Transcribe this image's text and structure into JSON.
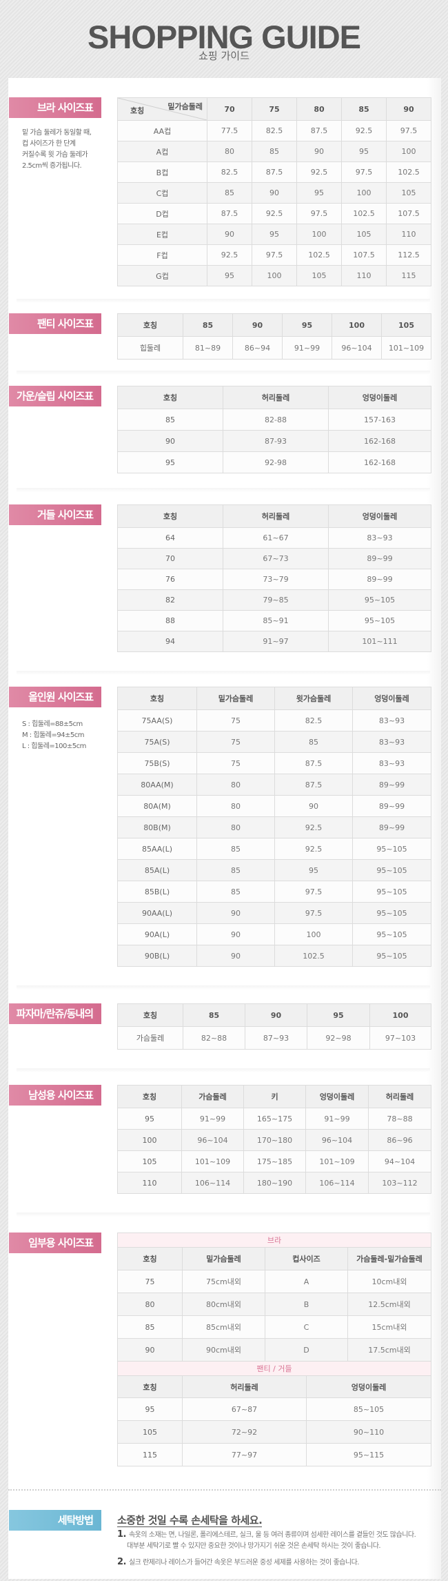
{
  "header": {
    "title": "SHOPPING GUIDE",
    "subtitle": "쇼핑 가이드"
  },
  "colors": {
    "label_pink": "#d46b8e",
    "label_blue": "#6ab6d3",
    "header_bg": "#f0f0f0"
  },
  "sections": {
    "bra": {
      "label": "브라 사이즈표",
      "note": [
        "밑 가슴 둘레가 동일할 때,",
        "컵 사이즈가 한 단계",
        "커질수록 윗 가슴 둘레가",
        "2.5cm씩 증가됩니다."
      ],
      "corner_top": "밑가슴둘레",
      "corner_bottom": "호칭",
      "header": [
        "70",
        "75",
        "80",
        "85",
        "90"
      ],
      "rows": [
        [
          "AA컵",
          "77.5",
          "82.5",
          "87.5",
          "92.5",
          "97.5"
        ],
        [
          "A컵",
          "80",
          "85",
          "90",
          "95",
          "100"
        ],
        [
          "B컵",
          "82.5",
          "87.5",
          "92.5",
          "97.5",
          "102.5"
        ],
        [
          "C컵",
          "85",
          "90",
          "95",
          "100",
          "105"
        ],
        [
          "D컵",
          "87.5",
          "92.5",
          "97.5",
          "102.5",
          "107.5"
        ],
        [
          "E컵",
          "90",
          "95",
          "100",
          "105",
          "110"
        ],
        [
          "F컵",
          "92.5",
          "97.5",
          "102.5",
          "107.5",
          "112.5"
        ],
        [
          "G컵",
          "95",
          "100",
          "105",
          "110",
          "115"
        ]
      ]
    },
    "panty": {
      "label": "팬티 사이즈표",
      "header": [
        "호칭",
        "85",
        "90",
        "95",
        "100",
        "105"
      ],
      "rows": [
        [
          "힙둘레",
          "81~89",
          "86~94",
          "91~99",
          "96~104",
          "101~109"
        ]
      ]
    },
    "gown": {
      "label": "가운/슬립 사이즈표",
      "header": [
        "호칭",
        "허리둘레",
        "엉덩이둘레"
      ],
      "rows": [
        [
          "85",
          "82-88",
          "157-163"
        ],
        [
          "90",
          "87-93",
          "162-168"
        ],
        [
          "95",
          "92-98",
          "162-168"
        ]
      ]
    },
    "girdle": {
      "label": "거들 사이즈표",
      "header": [
        "호칭",
        "허리둘레",
        "엉덩이둘레"
      ],
      "rows": [
        [
          "64",
          "61~67",
          "83~93"
        ],
        [
          "70",
          "67~73",
          "89~99"
        ],
        [
          "76",
          "73~79",
          "89~99"
        ],
        [
          "82",
          "79~85",
          "95~105"
        ],
        [
          "88",
          "85~91",
          "95~105"
        ],
        [
          "94",
          "91~97",
          "101~111"
        ]
      ]
    },
    "allinone": {
      "label": "올인원 사이즈표",
      "note": [
        "S : 힙둘레=88±5cm",
        "M : 힙둘레=94±5cm",
        "L : 힙둘레=100±5cm"
      ],
      "header": [
        "호칭",
        "밑가슴둘레",
        "윗가슴둘레",
        "엉덩이둘레"
      ],
      "rows": [
        [
          "75AA(S)",
          "75",
          "82.5",
          "83~93"
        ],
        [
          "75A(S)",
          "75",
          "85",
          "83~93"
        ],
        [
          "75B(S)",
          "75",
          "87.5",
          "83~93"
        ],
        [
          "80AA(M)",
          "80",
          "87.5",
          "89~99"
        ],
        [
          "80A(M)",
          "80",
          "90",
          "89~99"
        ],
        [
          "80B(M)",
          "80",
          "92.5",
          "89~99"
        ],
        [
          "85AA(L)",
          "85",
          "92.5",
          "95~105"
        ],
        [
          "85A(L)",
          "85",
          "95",
          "95~105"
        ],
        [
          "85B(L)",
          "85",
          "97.5",
          "95~105"
        ],
        [
          "90AA(L)",
          "90",
          "97.5",
          "95~105"
        ],
        [
          "90A(L)",
          "90",
          "100",
          "95~105"
        ],
        [
          "90B(L)",
          "90",
          "102.5",
          "95~105"
        ]
      ]
    },
    "pajama": {
      "label": "파자마/란쥬/동내의",
      "header": [
        "호칭",
        "85",
        "90",
        "95",
        "100"
      ],
      "rows": [
        [
          "가슴둘레",
          "82~88",
          "87~93",
          "92~98",
          "97~103"
        ]
      ]
    },
    "men": {
      "label": "남성용 사이즈표",
      "header": [
        "호칭",
        "가슴둘레",
        "키",
        "엉덩이둘레",
        "허리둘레"
      ],
      "rows": [
        [
          "95",
          "91~99",
          "165~175",
          "91~99",
          "78~88"
        ],
        [
          "100",
          "96~104",
          "170~180",
          "96~104",
          "86~96"
        ],
        [
          "105",
          "101~109",
          "175~185",
          "101~109",
          "94~104"
        ],
        [
          "110",
          "106~114",
          "180~190",
          "106~114",
          "103~112"
        ]
      ]
    },
    "maternity": {
      "label": "임부용 사이즈표",
      "bra_title": "브라",
      "bra_header": [
        "호칭",
        "밑가슴둘레",
        "컵사이즈",
        "가슴둘레-밑가슴둘레"
      ],
      "bra_rows": [
        [
          "75",
          "75cm내외",
          "A",
          "10cm내외"
        ],
        [
          "80",
          "80cm내외",
          "B",
          "12.5cm내외"
        ],
        [
          "85",
          "85cm내외",
          "C",
          "15cm내외"
        ],
        [
          "90",
          "90cm내외",
          "D",
          "17.5cm내외"
        ]
      ],
      "panty_title": "팬티 / 거들",
      "panty_header": [
        "호칭",
        "허리둘레",
        "엉덩이둘레"
      ],
      "panty_rows": [
        [
          "95",
          "67~87",
          "85~105"
        ],
        [
          "105",
          "72~92",
          "90~110"
        ],
        [
          "115",
          "77~97",
          "95~115"
        ]
      ]
    },
    "washing": {
      "label": "세탁방법",
      "heading": "소중한 것일 수록 손세탁을 하세요.",
      "items": [
        {
          "num": "1.",
          "lines": [
            "속옷의 소재는 면, 나일론, 폴리에스테르, 실크, 울 등 여러 종류이며 섬세한 레이스를 곁들인 것도 많습니다.",
            "대부분 세탁기로 빨 수 있지만 중요한 것이나 망가지기 쉬운 것은 손세탁 하시는 것이 좋습니다."
          ]
        },
        {
          "num": "2.",
          "lines": [
            "실크 란제리나 레이스가 들어간 속옷은 부드러운 중성 세제를 사용하는 것이 좋습니다."
          ]
        }
      ]
    }
  }
}
